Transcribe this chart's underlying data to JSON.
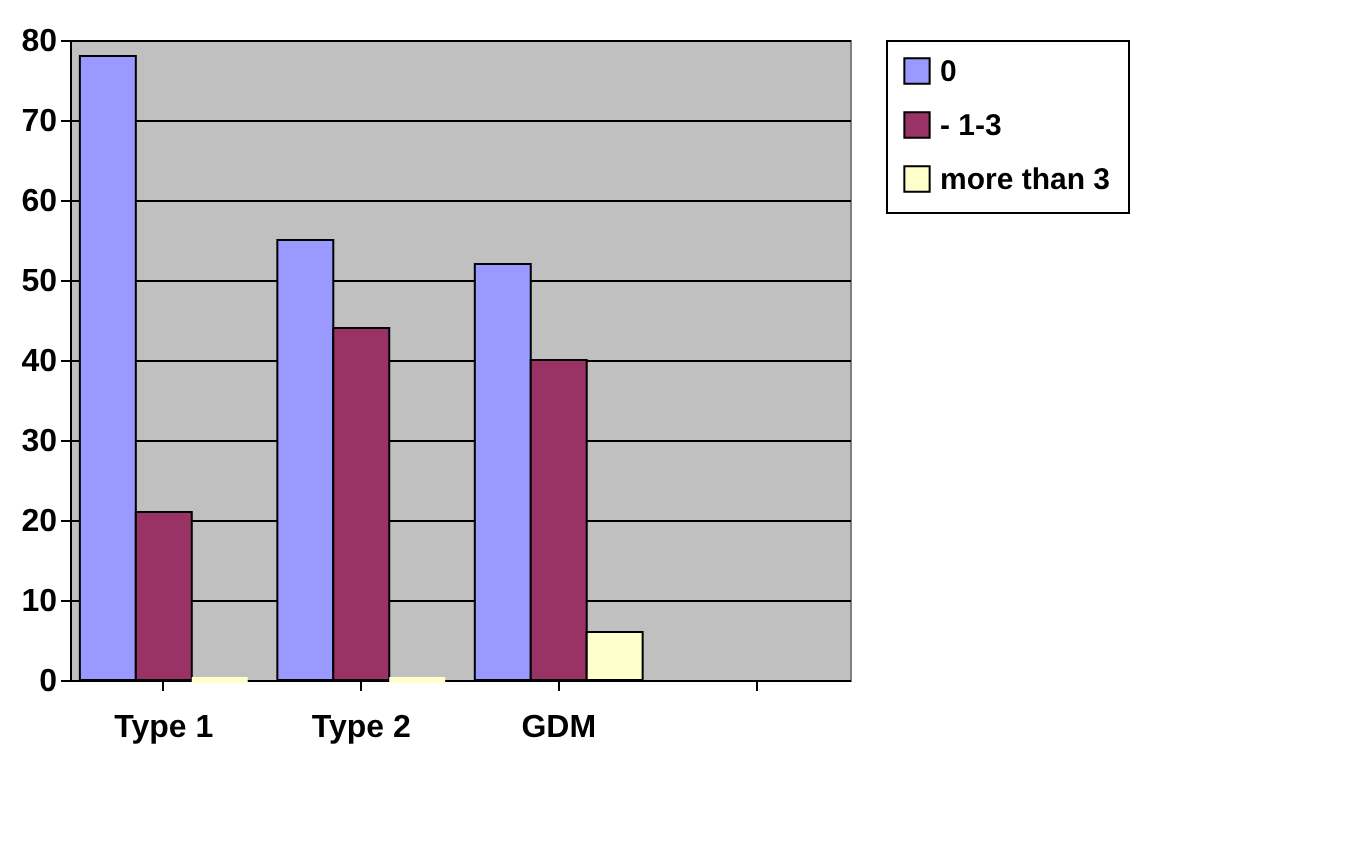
{
  "chart_data": {
    "type": "bar",
    "categories": [
      "Type 1",
      "Type 2",
      "GDM",
      null
    ],
    "series": [
      {
        "name": "0",
        "color": "#9999ff",
        "values": [
          78,
          55,
          52,
          null
        ]
      },
      {
        "name": "- 1-3",
        "color": "#993366",
        "values": [
          21,
          44,
          40,
          null
        ]
      },
      {
        "name": "more than 3",
        "color": "#ffffcc",
        "values": [
          0,
          0,
          6,
          null
        ]
      }
    ],
    "ylim": [
      0,
      80
    ],
    "yticks": [
      0,
      10,
      20,
      30,
      40,
      50,
      60,
      70,
      80
    ],
    "grid": "y",
    "legend": "right"
  }
}
